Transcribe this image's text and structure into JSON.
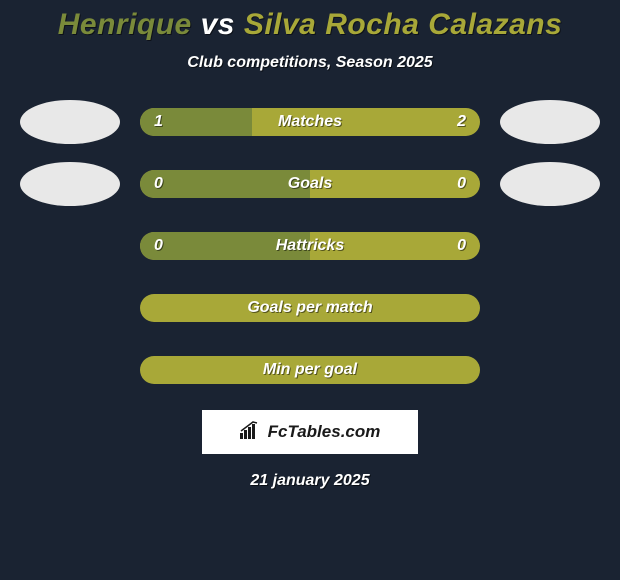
{
  "title": {
    "player1": "Henrique",
    "vs": "vs",
    "player2": "Silva Rocha Calazans",
    "player1_color": "#7a8a3a",
    "vs_color": "#ffffff",
    "player2_color": "#a8a838"
  },
  "subtitle": "Club competitions, Season 2025",
  "brand": "FcTables.com",
  "date": "21 january 2025",
  "colors": {
    "background": "#1a2332",
    "player1_bar": "#7a8a3a",
    "player2_bar": "#a8a838",
    "avatar_bg": "#e8e8e8"
  },
  "bars": [
    {
      "label": "Matches",
      "left_value": "1",
      "right_value": "2",
      "left_pct": 33,
      "show_avatars": true
    },
    {
      "label": "Goals",
      "left_value": "0",
      "right_value": "0",
      "left_pct": 50,
      "show_avatars": true
    },
    {
      "label": "Hattricks",
      "left_value": "0",
      "right_value": "0",
      "left_pct": 50,
      "show_avatars": false
    },
    {
      "label": "Goals per match",
      "left_value": "",
      "right_value": "",
      "left_pct": 0,
      "show_avatars": false
    },
    {
      "label": "Min per goal",
      "left_value": "",
      "right_value": "",
      "left_pct": 0,
      "show_avatars": false
    }
  ]
}
